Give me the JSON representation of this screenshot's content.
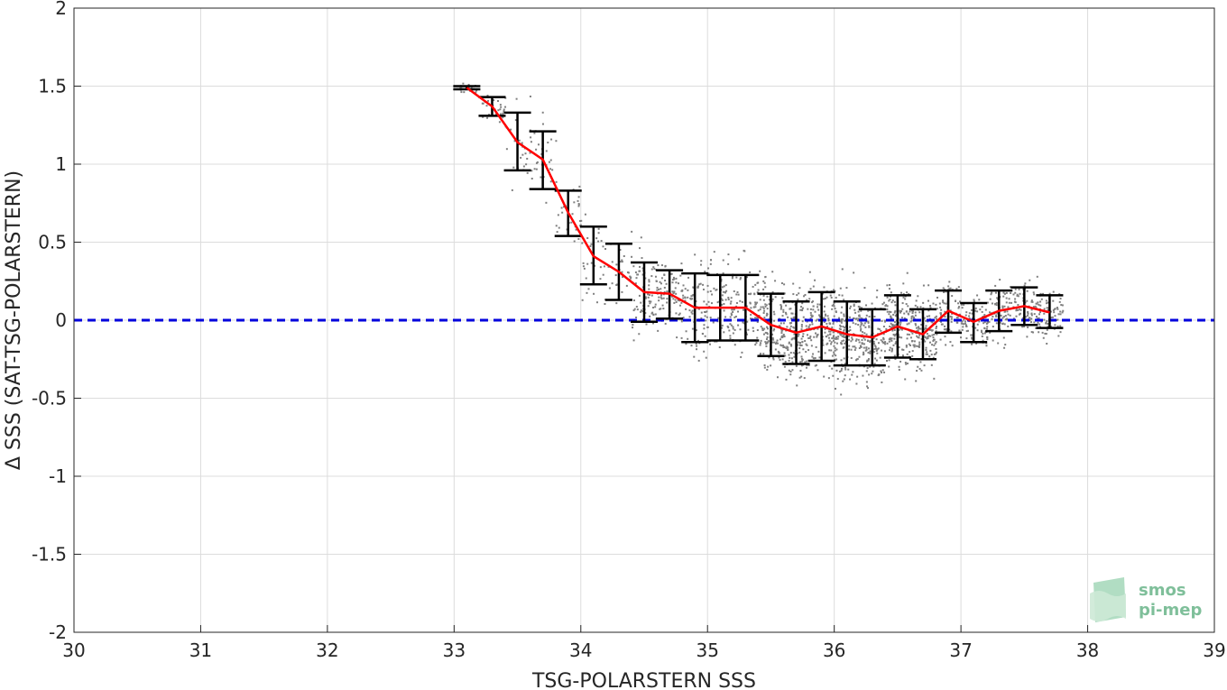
{
  "chart_data": {
    "type": "scatter",
    "xlabel": "TSG-POLARSTERN SSS",
    "ylabel": "Δ SSS (SAT-TSG-POLARSTERN)",
    "xlim": [
      30,
      39
    ],
    "ylim": [
      -2,
      2
    ],
    "x_ticks": [
      "30",
      "31",
      "32",
      "33",
      "34",
      "35",
      "36",
      "37",
      "38",
      "39"
    ],
    "y_ticks": [
      "-2",
      "-1.5",
      "-1",
      "-0.5",
      "0",
      "0.5",
      "1",
      "1.5",
      "2"
    ],
    "grid": true,
    "reference_line": {
      "y": 0,
      "style": "dashed",
      "color": "#0000dd"
    },
    "binned_mean": {
      "color": "#ff0000",
      "x": [
        33.1,
        33.3,
        33.5,
        33.7,
        33.9,
        34.1,
        34.3,
        34.5,
        34.7,
        34.9,
        35.1,
        35.3,
        35.5,
        35.7,
        35.9,
        36.1,
        36.3,
        36.5,
        36.7,
        36.9,
        37.1,
        37.3,
        37.5,
        37.7
      ],
      "mean": [
        1.49,
        1.37,
        1.14,
        1.03,
        0.69,
        0.41,
        0.31,
        0.18,
        0.17,
        0.08,
        0.08,
        0.08,
        -0.03,
        -0.08,
        -0.04,
        -0.09,
        -0.11,
        -0.04,
        -0.09,
        0.06,
        -0.01,
        0.06,
        0.09,
        0.05
      ],
      "error_low": [
        1.48,
        1.31,
        0.96,
        0.84,
        0.54,
        0.23,
        0.13,
        -0.01,
        0.01,
        -0.14,
        -0.13,
        -0.13,
        -0.23,
        -0.28,
        -0.26,
        -0.29,
        -0.29,
        -0.24,
        -0.25,
        -0.08,
        -0.14,
        -0.07,
        -0.03,
        -0.05
      ],
      "error_high": [
        1.5,
        1.43,
        1.33,
        1.21,
        0.83,
        0.6,
        0.49,
        0.37,
        0.32,
        0.3,
        0.29,
        0.29,
        0.17,
        0.12,
        0.18,
        0.12,
        0.07,
        0.16,
        0.07,
        0.19,
        0.11,
        0.19,
        0.21,
        0.16
      ]
    },
    "scatter_color": "#808080",
    "logo": {
      "line1": "smos",
      "line2": "pi-mep"
    }
  }
}
